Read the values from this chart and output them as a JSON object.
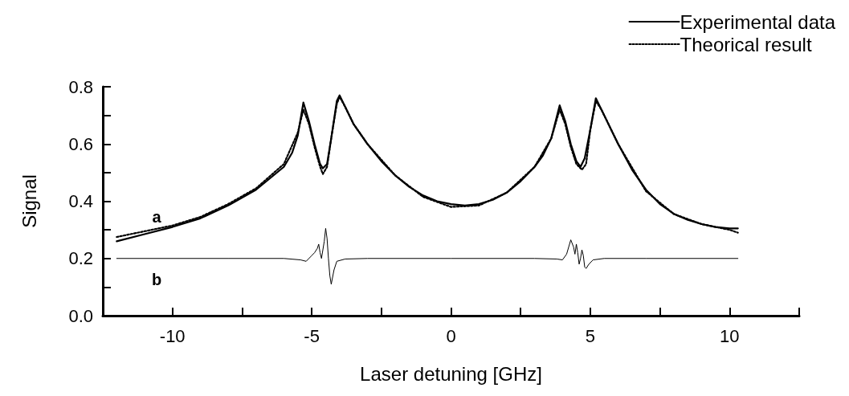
{
  "chart_data": {
    "type": "line",
    "xlabel": "Laser detuning [GHz]",
    "ylabel": "Signal",
    "xlim": [
      -12.5,
      12.5
    ],
    "xticks": [
      {
        "value": -12.5,
        "label": null
      },
      -10,
      {
        "value": -7.5,
        "label": null
      },
      -5,
      {
        "value": -2.5,
        "label": null
      },
      0,
      {
        "value": 2.5,
        "label": null
      },
      5,
      {
        "value": 7.5,
        "label": null
      },
      10,
      {
        "value": 12.5,
        "label": null
      }
    ],
    "ylim": [
      0,
      0.8
    ],
    "yticks": [
      {
        "value": 0,
        "label": "0.0"
      },
      {
        "value": 0.1,
        "label": null
      },
      {
        "value": 0.2,
        "label": "0.2"
      },
      {
        "value": 0.3,
        "label": null
      },
      {
        "value": 0.4,
        "label": "0.4"
      },
      {
        "value": 0.5,
        "label": null
      },
      {
        "value": 0.6,
        "label": "0.6"
      },
      {
        "value": 0.7,
        "label": null
      },
      {
        "value": 0.8,
        "label": "0.8"
      }
    ],
    "grid": false,
    "legend": "top right",
    "marker": "none",
    "annotations": [
      "a",
      "b"
    ],
    "series": [
      {
        "name": "Experimental data",
        "color": "#000000",
        "line_style": "solid",
        "x": [
          -12,
          -11,
          -10,
          -9,
          -8,
          -7,
          -6.5,
          -6,
          -5.7,
          -5.5,
          -5.3,
          -5.1,
          -4.9,
          -4.7,
          -4.6,
          -4.45,
          -4.3,
          -4.1,
          -4.0,
          -3.8,
          -3.5,
          -3,
          -2.5,
          -2,
          -1.5,
          -1,
          -0.5,
          0,
          0.5,
          1,
          1.5,
          2,
          2.5,
          3,
          3.3,
          3.6,
          3.9,
          4.1,
          4.3,
          4.5,
          4.65,
          4.8,
          5.0,
          5.2,
          5.4,
          5.7,
          6,
          6.5,
          7,
          7.5,
          8,
          8.5,
          9,
          9.5,
          10,
          10.3
        ],
        "values": [
          0.26,
          0.285,
          0.31,
          0.34,
          0.385,
          0.44,
          0.48,
          0.52,
          0.57,
          0.63,
          0.745,
          0.68,
          0.6,
          0.53,
          0.515,
          0.53,
          0.62,
          0.75,
          0.77,
          0.73,
          0.67,
          0.6,
          0.54,
          0.49,
          0.45,
          0.42,
          0.4,
          0.39,
          0.385,
          0.39,
          0.405,
          0.43,
          0.47,
          0.52,
          0.56,
          0.62,
          0.735,
          0.68,
          0.6,
          0.54,
          0.52,
          0.55,
          0.65,
          0.76,
          0.72,
          0.66,
          0.6,
          0.51,
          0.44,
          0.39,
          0.356,
          0.335,
          0.32,
          0.31,
          0.305,
          0.305
        ]
      },
      {
        "name": "Theorical result",
        "color": "#000000",
        "line_style": "dotted",
        "x": [
          -12,
          -11,
          -10,
          -9,
          -8,
          -7,
          -6,
          -5.5,
          -5.3,
          -5.1,
          -4.9,
          -4.7,
          -4.6,
          -4.45,
          -4.3,
          -4.1,
          -4.0,
          -3.8,
          -3.5,
          -3,
          -2,
          -1,
          0,
          1,
          2,
          3,
          3.6,
          3.9,
          4.1,
          4.3,
          4.5,
          4.7,
          4.85,
          5.0,
          5.2,
          5.4,
          6,
          7,
          8,
          9,
          10,
          10.3
        ],
        "values": [
          0.275,
          0.295,
          0.315,
          0.345,
          0.39,
          0.445,
          0.53,
          0.64,
          0.72,
          0.67,
          0.59,
          0.52,
          0.495,
          0.52,
          0.62,
          0.74,
          0.765,
          0.73,
          0.67,
          0.6,
          0.49,
          0.415,
          0.38,
          0.385,
          0.43,
          0.52,
          0.62,
          0.72,
          0.67,
          0.59,
          0.53,
          0.51,
          0.53,
          0.65,
          0.75,
          0.72,
          0.6,
          0.435,
          0.355,
          0.32,
          0.3,
          0.29
        ]
      },
      {
        "color": "#000000",
        "line_style": "solid",
        "x": [
          -12,
          -8,
          -6,
          -5.4,
          -5.2,
          -5.0,
          -4.9,
          -4.8,
          -4.75,
          -4.7,
          -4.65,
          -4.55,
          -4.5,
          -4.45,
          -4.4,
          -4.35,
          -4.3,
          -4.2,
          -4.1,
          -3.8,
          -3,
          0,
          3,
          3.8,
          4.0,
          4.15,
          4.3,
          4.4,
          4.45,
          4.5,
          4.55,
          4.6,
          4.65,
          4.7,
          4.75,
          4.8,
          4.85,
          4.95,
          5.1,
          5.5,
          7,
          10.3
        ],
        "values": [
          0.2,
          0.2,
          0.2,
          0.195,
          0.19,
          0.21,
          0.22,
          0.235,
          0.25,
          0.22,
          0.2,
          0.26,
          0.305,
          0.27,
          0.2,
          0.14,
          0.11,
          0.16,
          0.19,
          0.198,
          0.2,
          0.2,
          0.2,
          0.198,
          0.195,
          0.215,
          0.265,
          0.24,
          0.215,
          0.25,
          0.22,
          0.18,
          0.2,
          0.23,
          0.21,
          0.17,
          0.165,
          0.18,
          0.195,
          0.2,
          0.2,
          0.2
        ]
      }
    ]
  }
}
